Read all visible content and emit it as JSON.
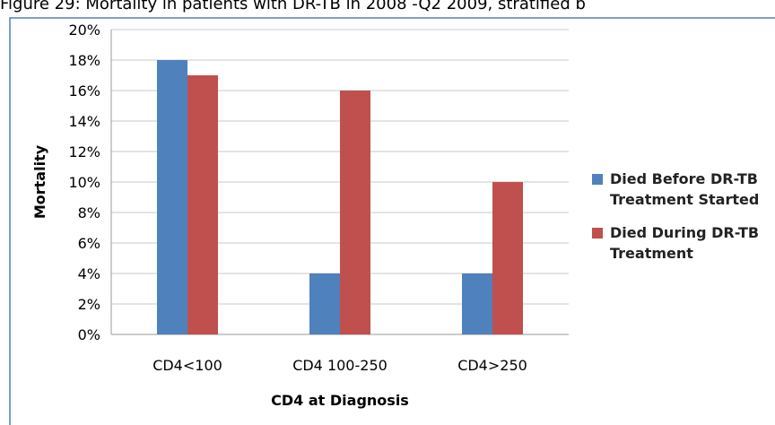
{
  "chart_data": {
    "type": "bar",
    "title": "Figure 29: Mortality in patients with DR-TB in 2008 -Q2 2009, stratified b",
    "x_label": "CD4 at Diagnosis",
    "y_label": "Mortality",
    "categories": [
      "CD4<100",
      "CD4 100-250",
      "CD4>250"
    ],
    "series": [
      {
        "name": "Died Before DR-TB Treatment Started",
        "color": "#4f81bd",
        "values": [
          18,
          4,
          4
        ]
      },
      {
        "name": "Died During DR-TB Treatment",
        "color": "#c0504d",
        "values": [
          17,
          16,
          10
        ]
      }
    ],
    "ylim": [
      0,
      20
    ],
    "yticks": [
      {
        "value": 0,
        "label": "0%"
      },
      {
        "value": 2,
        "label": "2%"
      },
      {
        "value": 4,
        "label": "4%"
      },
      {
        "value": 6,
        "label": "6%"
      },
      {
        "value": 8,
        "label": "8%"
      },
      {
        "value": 10,
        "label": "10%"
      },
      {
        "value": 12,
        "label": "12%"
      },
      {
        "value": 14,
        "label": "14%"
      },
      {
        "value": 16,
        "label": "16%"
      },
      {
        "value": 18,
        "label": "18%"
      },
      {
        "value": 20,
        "label": "20%"
      }
    ],
    "grid": true,
    "legend": "right"
  }
}
